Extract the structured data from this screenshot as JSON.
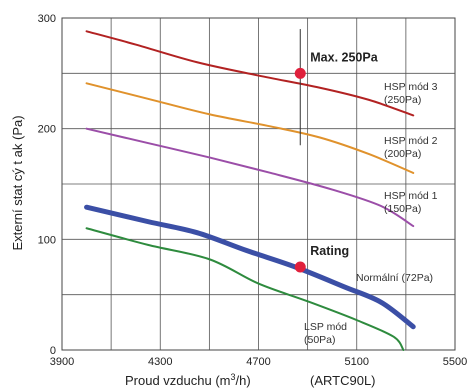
{
  "chart_data": {
    "type": "line",
    "xlabel": "Proud vzduchu (m³/h)",
    "xlabel_parts": {
      "before": "Proud vzduchu (m",
      "sup": "3",
      "after": "/h)"
    },
    "model_label": "(ARTC90L)",
    "ylabel": "Externí stat cý t ak (Pa)",
    "xlim": [
      3900,
      5500
    ],
    "ylim": [
      0,
      300
    ],
    "x_ticks": [
      "3900",
      "4300",
      "4700",
      "5100",
      "5500"
    ],
    "y_ticks": [
      "0",
      "100",
      "200",
      "300"
    ],
    "x_grid": [
      4100,
      4300,
      4500,
      4700,
      4900,
      5100,
      5300
    ],
    "y_grid": [
      50,
      100,
      150,
      200,
      250
    ],
    "grid": true,
    "series": [
      {
        "id": "hsp3",
        "color": "#b22222",
        "width": 2,
        "points": [
          [
            4000,
            288
          ],
          [
            4200,
            276
          ],
          [
            4450,
            260
          ],
          [
            4700,
            248
          ],
          [
            4950,
            237
          ],
          [
            5150,
            226
          ],
          [
            5330,
            212
          ]
        ],
        "label_lines": [
          "HSP mód 3",
          "(250Pa)"
        ]
      },
      {
        "id": "hsp2",
        "color": "#e0922c",
        "width": 2,
        "points": [
          [
            4000,
            241
          ],
          [
            4250,
            227
          ],
          [
            4500,
            213
          ],
          [
            4750,
            202
          ],
          [
            4950,
            192
          ],
          [
            5150,
            177
          ],
          [
            5330,
            160
          ]
        ],
        "label_lines": [
          "HSP mód 2",
          "(200Pa)"
        ]
      },
      {
        "id": "hsp1",
        "color": "#9b4ea8",
        "width": 2,
        "points": [
          [
            4000,
            200
          ],
          [
            4250,
            187
          ],
          [
            4500,
            174
          ],
          [
            4750,
            160
          ],
          [
            5000,
            145
          ],
          [
            5200,
            130
          ],
          [
            5330,
            112
          ]
        ],
        "label_lines": [
          "HSP mód 1",
          "(150Pa)"
        ]
      },
      {
        "id": "normal",
        "color": "#3b4fa6",
        "width": 5,
        "points": [
          [
            4000,
            129
          ],
          [
            4250,
            116
          ],
          [
            4450,
            106
          ],
          [
            4650,
            90
          ],
          [
            4850,
            75
          ],
          [
            5050,
            57
          ],
          [
            5200,
            43
          ],
          [
            5330,
            21
          ]
        ],
        "label_lines": [
          "Normální (72Pa)"
        ]
      },
      {
        "id": "lsp",
        "color": "#2e8b3e",
        "width": 2,
        "points": [
          [
            4000,
            110
          ],
          [
            4250,
            95
          ],
          [
            4500,
            82
          ],
          [
            4700,
            60
          ],
          [
            4900,
            44
          ],
          [
            5100,
            27
          ],
          [
            5250,
            12
          ],
          [
            5290,
            0
          ]
        ],
        "label_lines": [
          "LSP mód",
          "(50Pa)"
        ]
      }
    ],
    "markers": [
      {
        "label": "Max. 250Pa",
        "x": 4870,
        "y": 250,
        "color": "#e0203c"
      },
      {
        "label": "Rating",
        "x": 4870,
        "y": 75,
        "color": "#e0203c"
      }
    ],
    "vline_x": 4870
  }
}
